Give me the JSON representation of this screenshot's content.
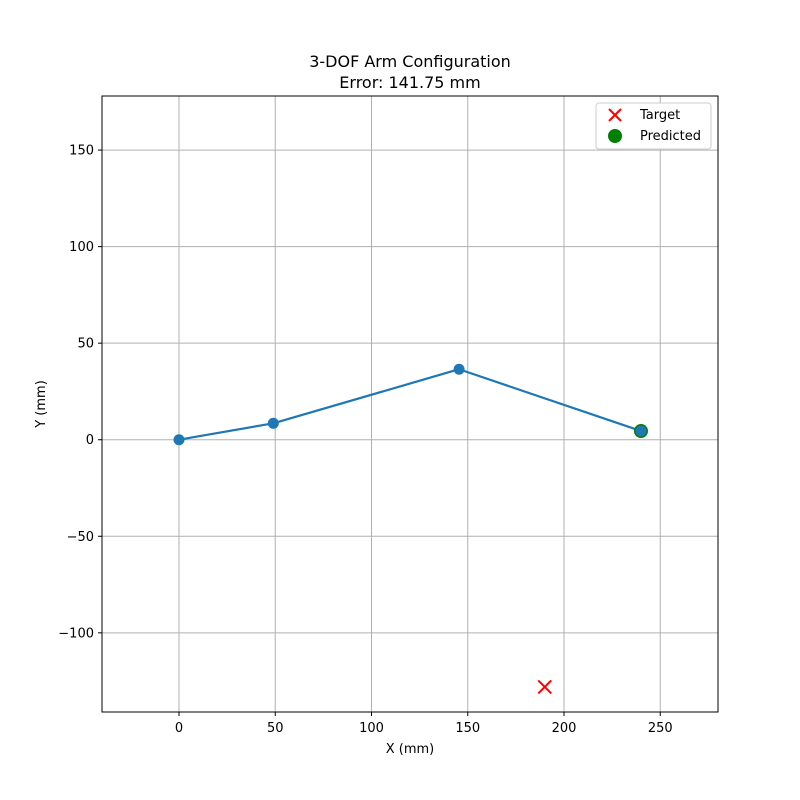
{
  "chart_data": {
    "type": "line",
    "title": "3-DOF Arm Configuration",
    "subtitle": "Error: 141.75 mm",
    "xlabel": "X (mm)",
    "ylabel": "Y (mm)",
    "xlim": [
      -40,
      280
    ],
    "ylim": [
      -141,
      178
    ],
    "xticks": [
      0,
      50,
      100,
      150,
      200,
      250
    ],
    "yticks": [
      -100,
      -50,
      0,
      50,
      100,
      150
    ],
    "xtick_labels": [
      "0",
      "50",
      "100",
      "150",
      "200",
      "250"
    ],
    "ytick_labels": [
      "−100",
      "−50",
      "0",
      "50",
      "100",
      "150"
    ],
    "grid": true,
    "legend_position": "top-right",
    "series": [
      {
        "type": "line",
        "color": "#1f77b4",
        "x": [
          0,
          49,
          145.5,
          240
        ],
        "y": [
          0,
          8.5,
          36.5,
          4.5
        ]
      },
      {
        "name": "Target",
        "type": "scatter",
        "marker": "x",
        "color": "#ff0000",
        "x": [
          190
        ],
        "y": [
          -128
        ]
      },
      {
        "name": "Predicted",
        "type": "scatter",
        "marker": "circle",
        "color": "#008000",
        "x": [
          240
        ],
        "y": [
          4.5
        ]
      }
    ]
  }
}
